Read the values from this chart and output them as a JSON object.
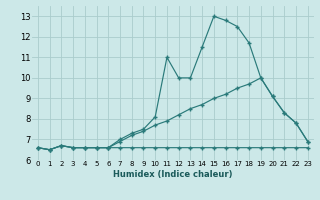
{
  "xlabel": "Humidex (Indice chaleur)",
  "bg_color": "#cce8e8",
  "grid_color": "#aacccc",
  "line_color": "#2a7a7a",
  "x_values": [
    0,
    1,
    2,
    3,
    4,
    5,
    6,
    7,
    8,
    9,
    10,
    11,
    12,
    13,
    14,
    15,
    16,
    17,
    18,
    19,
    20,
    21,
    22,
    23
  ],
  "line_zigzag": [
    6.6,
    6.5,
    6.7,
    6.6,
    6.6,
    6.6,
    6.6,
    7.0,
    7.3,
    7.5,
    8.1,
    11.0,
    10.0,
    10.0,
    11.5,
    13.0,
    12.8,
    12.5,
    11.7,
    10.0,
    9.1,
    8.3,
    7.8,
    6.9
  ],
  "line_mid": [
    6.6,
    6.5,
    6.7,
    6.6,
    6.6,
    6.6,
    6.6,
    6.9,
    7.2,
    7.4,
    7.7,
    7.9,
    8.2,
    8.5,
    8.7,
    9.0,
    9.2,
    9.5,
    9.7,
    10.0,
    9.1,
    8.3,
    7.8,
    6.9
  ],
  "line_flat": [
    6.6,
    6.5,
    6.7,
    6.6,
    6.6,
    6.6,
    6.6,
    6.6,
    6.6,
    6.6,
    6.6,
    6.6,
    6.6,
    6.6,
    6.6,
    6.6,
    6.6,
    6.6,
    6.6,
    6.6,
    6.6,
    6.6,
    6.6,
    6.6
  ],
  "ylim": [
    6.0,
    13.5
  ],
  "xlim": [
    -0.5,
    23.5
  ],
  "yticks": [
    6,
    7,
    8,
    9,
    10,
    11,
    12,
    13
  ],
  "xticks": [
    0,
    1,
    2,
    3,
    4,
    5,
    6,
    7,
    8,
    9,
    10,
    11,
    12,
    13,
    14,
    15,
    16,
    17,
    18,
    19,
    20,
    21,
    22,
    23
  ]
}
